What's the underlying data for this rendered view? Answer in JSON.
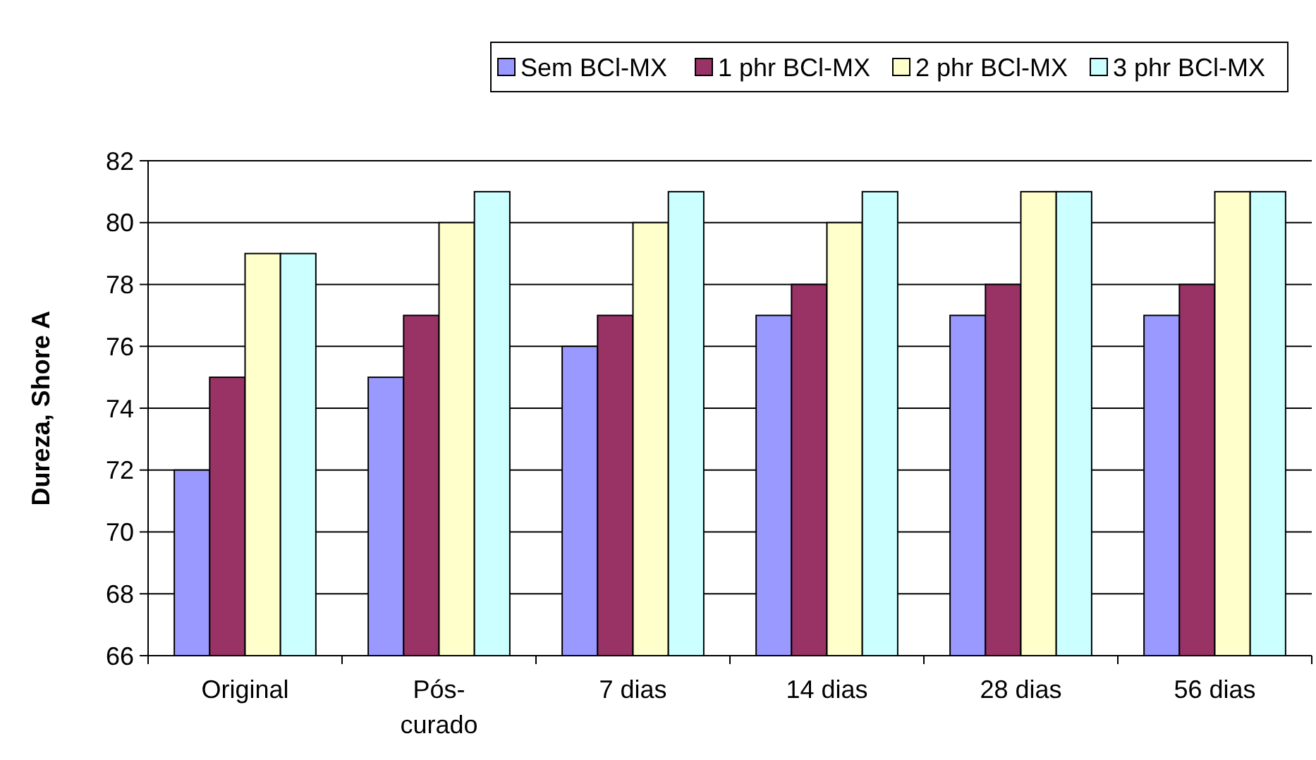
{
  "chart_data": {
    "type": "bar",
    "ylabel": "Dureza, Shore A",
    "categories": [
      "Original",
      "Pós-curado",
      "7 dias",
      "14 dias",
      "28 dias",
      "56 dias"
    ],
    "series": [
      {
        "name": "Sem BCl-MX",
        "color": "#9999ff",
        "values": [
          72,
          75,
          76,
          77,
          77,
          77
        ]
      },
      {
        "name": "1 phr BCl-MX",
        "color": "#993366",
        "values": [
          75,
          77,
          77,
          78,
          78,
          78
        ]
      },
      {
        "name": "2 phr BCl-MX",
        "color": "#ffffcc",
        "values": [
          79,
          80,
          80,
          80,
          81,
          81
        ]
      },
      {
        "name": "3 phr BCl-MX",
        "color": "#ccffff",
        "values": [
          79,
          81,
          81,
          81,
          81,
          81
        ]
      }
    ],
    "ylim": [
      66,
      82
    ],
    "yticks": [
      66,
      68,
      70,
      72,
      74,
      76,
      78,
      80,
      82
    ],
    "grid": "y",
    "legend": "top right"
  }
}
